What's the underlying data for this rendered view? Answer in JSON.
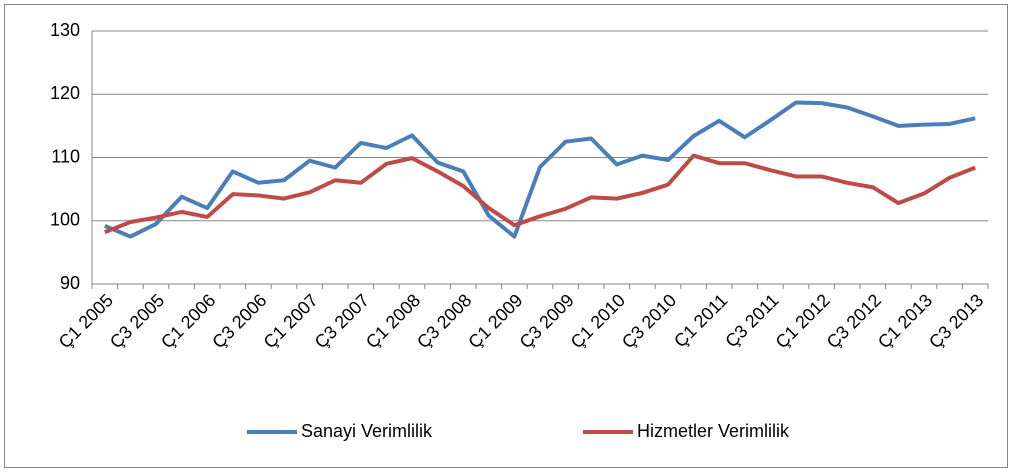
{
  "chart_data": {
    "type": "line",
    "categories": [
      "Ç1 2005",
      null,
      "Ç3 2005",
      null,
      "Ç1 2006",
      null,
      "Ç3 2006",
      null,
      "Ç1 2007",
      null,
      "Ç3 2007",
      null,
      "Ç1 2008",
      null,
      "Ç3 2008",
      null,
      "Ç1 2009",
      null,
      "Ç3 2009",
      null,
      "Ç1 2010",
      null,
      "Ç3 2010",
      null,
      "Ç1 2011",
      null,
      "Ç3 2011",
      null,
      "Ç1 2012",
      null,
      "Ç3 2012",
      null,
      "Ç1 2013",
      null,
      "Ç3 2013"
    ],
    "series": [
      {
        "name": "Sanayi Verimlilik",
        "color": "#4a7ebb",
        "values": [
          99.2,
          97.5,
          99.5,
          103.8,
          102.0,
          107.8,
          106.0,
          106.4,
          109.5,
          108.4,
          112.3,
          111.5,
          113.5,
          109.2,
          107.8,
          100.8,
          97.5,
          108.5,
          112.5,
          113.0,
          108.9,
          110.3,
          109.6,
          113.4,
          115.8,
          113.2,
          115.9,
          118.7,
          118.6,
          117.9,
          116.5,
          115.0,
          115.2,
          115.3,
          116.2
        ]
      },
      {
        "name": "Hizmetler Verimlilik",
        "color": "#be4b48",
        "values": [
          98.2,
          99.8,
          100.5,
          101.4,
          100.6,
          104.2,
          104.0,
          103.5,
          104.5,
          106.4,
          106.0,
          109.0,
          109.9,
          107.8,
          105.5,
          102.0,
          99.3,
          100.7,
          101.9,
          103.7,
          103.5,
          104.4,
          105.7,
          110.3,
          109.1,
          109.1,
          108.0,
          107.0,
          107.0,
          106.0,
          105.3,
          102.8,
          104.3,
          106.8,
          108.4
        ]
      }
    ],
    "ylim": [
      90,
      130
    ],
    "yticks": [
      90,
      100,
      110,
      120,
      130
    ],
    "grid": true,
    "legend": "bottom"
  }
}
